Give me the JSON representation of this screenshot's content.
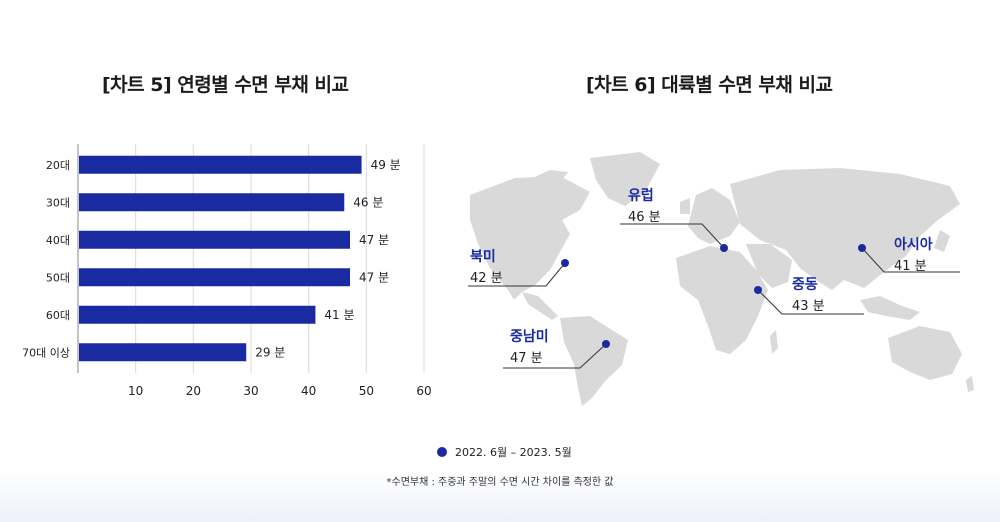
{
  "chart_data": [
    {
      "type": "bar",
      "orientation": "horizontal",
      "title": "[차트 5] 연령별 수면 부채 비교",
      "categories": [
        "20대",
        "30대",
        "40대",
        "50대",
        "60대",
        "70대 이상"
      ],
      "values": [
        49,
        46,
        47,
        47,
        41,
        29
      ],
      "value_labels": [
        "49 분",
        "46 분",
        "47 분",
        "47 분",
        "41 분",
        "29 분"
      ],
      "xlim": [
        0,
        60
      ],
      "xticks": [
        10,
        20,
        30,
        40,
        50,
        60
      ],
      "grid": true,
      "color": "#1a2aa0"
    },
    {
      "type": "map",
      "title": "[차트 6] 대륙별 수면 부채 비교",
      "regions": [
        {
          "name": "유럽",
          "value": 46,
          "label": "46 분"
        },
        {
          "name": "아시아",
          "value": 41,
          "label": "41 분"
        },
        {
          "name": "북미",
          "value": 42,
          "label": "42 분"
        },
        {
          "name": "중동",
          "value": 43,
          "label": "43 분"
        },
        {
          "name": "중남미",
          "value": 47,
          "label": "47 분"
        }
      ],
      "color": "#1a2aa0"
    }
  ],
  "legend": {
    "label": "2022. 6월 – 2023. 5월",
    "color": "#1a2aa0"
  },
  "footnote": "*수면부채 : 주중과 주말의 수면 시간 차이를 측정한 값"
}
